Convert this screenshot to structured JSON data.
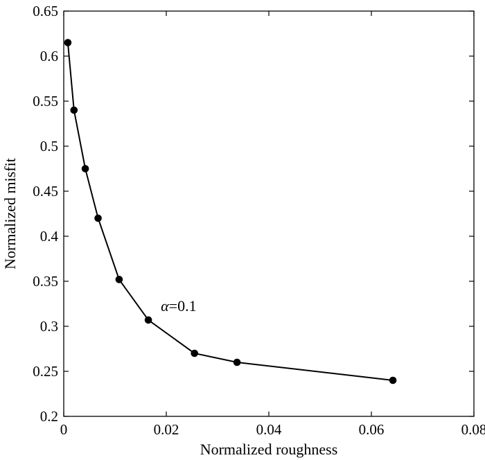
{
  "chart_data": {
    "type": "line",
    "xlabel": "Normalized roughness",
    "ylabel": "Normalized misfit",
    "xlim": [
      0,
      0.08
    ],
    "ylim": [
      0.2,
      0.65
    ],
    "xticks": [
      "0",
      "0.02",
      "0.04",
      "0.06",
      "0.08"
    ],
    "yticks": [
      "0.2",
      "0.25",
      "0.3",
      "0.35",
      "0.4",
      "0.45",
      "0.5",
      "0.55",
      "0.6",
      "0.65"
    ],
    "grid": false,
    "series": [
      {
        "x": [
          0.0008,
          0.002,
          0.0042,
          0.0067,
          0.0108,
          0.0165,
          0.0255,
          0.0338,
          0.0642
        ],
        "y": [
          0.615,
          0.54,
          0.475,
          0.42,
          0.352,
          0.307,
          0.27,
          0.26,
          0.24
        ]
      }
    ],
    "annotations": [
      {
        "symbol": "α",
        "text": "=0.1",
        "x": 0.0165,
        "y": 0.307
      }
    ],
    "color": "#000000"
  }
}
